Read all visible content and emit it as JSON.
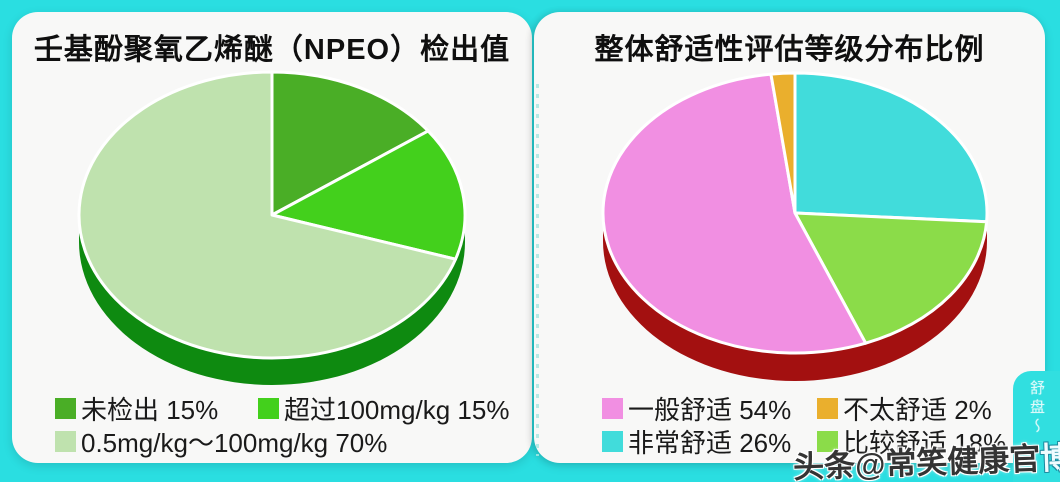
{
  "page": {
    "frame_color": "#2adee1",
    "panel_color": "#f8f8f7",
    "title_color": "#0f0f0f"
  },
  "watermark": {
    "prefix": "头条@常笑健康官",
    "suffix": "博",
    "vertical_text": "舒盘～"
  },
  "chart_data": [
    {
      "type": "pie",
      "style": "3d",
      "title": "壬基酚聚氧乙烯醚（NPEO）检出值",
      "start_angle_deg": 0,
      "clockwise": true,
      "legend_position": "bottom",
      "rim_color": "#0e8a10",
      "slices": [
        {
          "label": "未检出",
          "value": 15,
          "color": "#4aae26"
        },
        {
          "label": "超过100mg/kg",
          "value": 15,
          "color": "#43d01c"
        },
        {
          "label": "0.5mg/kg～100mg/kg",
          "value": 70,
          "color": "#bfe2ae"
        }
      ],
      "legend_order": [
        0,
        1,
        2
      ]
    },
    {
      "type": "pie",
      "style": "3d",
      "title": "整体舒适性评估等级分布比例",
      "start_angle_deg": 0,
      "clockwise": true,
      "legend_position": "bottom",
      "rim_color": "#a31010",
      "slices": [
        {
          "label": "非常舒适",
          "value": 26,
          "color": "#41dcdb"
        },
        {
          "label": "比较舒适",
          "value": 18,
          "color": "#8bdc49"
        },
        {
          "label": "一般舒适",
          "value": 54,
          "color": "#f18fe2"
        },
        {
          "label": "不太舒适",
          "value": 2,
          "color": "#eaaf2d"
        }
      ],
      "legend_order": [
        2,
        3,
        0,
        1
      ]
    }
  ]
}
